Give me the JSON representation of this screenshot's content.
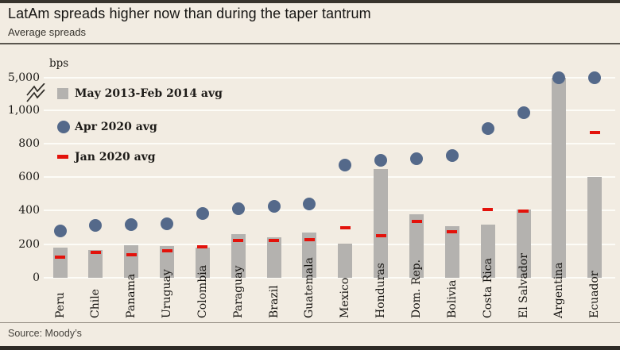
{
  "header": {
    "title": "LatAm spreads higher now than during the taper tantrum",
    "subtitle": "Average spreads"
  },
  "source": "Source: Moody’s",
  "chart_data": {
    "type": "bar",
    "title": "LatAm spreads higher now than during the taper tantrum",
    "subtitle": "Average spreads",
    "ylabel": "bps",
    "xlabel": "",
    "grid": "horizontal",
    "legend_position": "top-left-inside",
    "axis_break_between": [
      1000,
      5000
    ],
    "y_ticks": [
      {
        "value": 0,
        "label": "0"
      },
      {
        "value": 200,
        "label": "200"
      },
      {
        "value": 400,
        "label": "400"
      },
      {
        "value": 600,
        "label": "600"
      },
      {
        "value": 800,
        "label": "800"
      },
      {
        "value": 1000,
        "label": "1,000"
      },
      {
        "value": 5000,
        "label": "5,000"
      }
    ],
    "colors": {
      "bar": "#b4b2af",
      "dot": "#54698a",
      "dash": "#e3120b",
      "background": "#f2ece2",
      "gridline": "#fdfcf7"
    },
    "legend": [
      {
        "label": "May 2013-Feb 2014 avg",
        "marker": "bar",
        "color": "#b4b2af"
      },
      {
        "label": "Apr 2020 avg",
        "marker": "dot",
        "color": "#54698a"
      },
      {
        "label": "Jan 2020 avg",
        "marker": "dash",
        "color": "#e3120b"
      }
    ],
    "categories": [
      "Peru",
      "Chile",
      "Panama",
      "Uruguay",
      "Colombia",
      "Paraguay",
      "Brazil",
      "Guatemala",
      "Mexico",
      "Honduras",
      "Dom. Rep.",
      "Bolivia",
      "Costa Rica",
      "El Salvador",
      "Argentina",
      "Ecuador"
    ],
    "series": [
      {
        "name": "May 2013-Feb 2014 avg",
        "type": "bar",
        "values": [
          180,
          165,
          195,
          190,
          180,
          260,
          240,
          270,
          205,
          650,
          380,
          305,
          315,
          405,
          1015,
          600
        ]
      },
      {
        "name": "Apr 2020 avg",
        "type": "dot",
        "values": [
          280,
          310,
          315,
          320,
          385,
          410,
          425,
          440,
          670,
          700,
          710,
          730,
          890,
          985,
          5000,
          5000
        ]
      },
      {
        "name": "Jan 2020 avg",
        "type": "dash",
        "values": [
          125,
          150,
          135,
          160,
          185,
          220,
          220,
          225,
          300,
          250,
          335,
          275,
          405,
          395,
          null,
          865
        ]
      }
    ]
  }
}
